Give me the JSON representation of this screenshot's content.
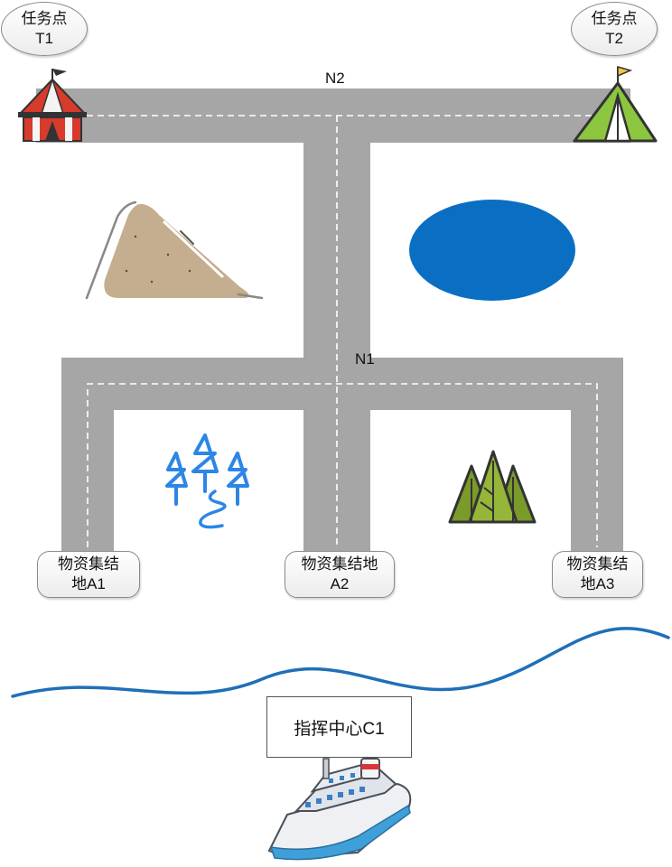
{
  "road_labels": {
    "north": "N2",
    "middle": "N1"
  },
  "task_points": [
    {
      "label": "任务点",
      "id": "T1"
    },
    {
      "label": "任务点",
      "id": "T2"
    }
  ],
  "supply_depots": [
    {
      "line1": "物资集结",
      "line2": "地A1"
    },
    {
      "line1": "物资集结地",
      "line2": "A2"
    },
    {
      "line1": "物资集结",
      "line2": "地A3"
    }
  ],
  "command_center": {
    "label": "指挥中心C1"
  },
  "colors": {
    "road": "#a6a6a6",
    "lane_marking": "#ffffff",
    "lake": "#0a6fc2",
    "river": "#1f6fb8",
    "forest_blue": "#2b86e6",
    "forest_green": "#7a9a2a",
    "mountain": "#c5ad8f",
    "tent_red": "#d63b2b",
    "tent_green": "#8cc63f"
  },
  "icons": [
    "circus-tent-icon",
    "camping-tent-icon",
    "mountain-icon",
    "lake-icon",
    "pine-forest-icon",
    "green-forest-icon",
    "river-icon",
    "ship-icon"
  ]
}
